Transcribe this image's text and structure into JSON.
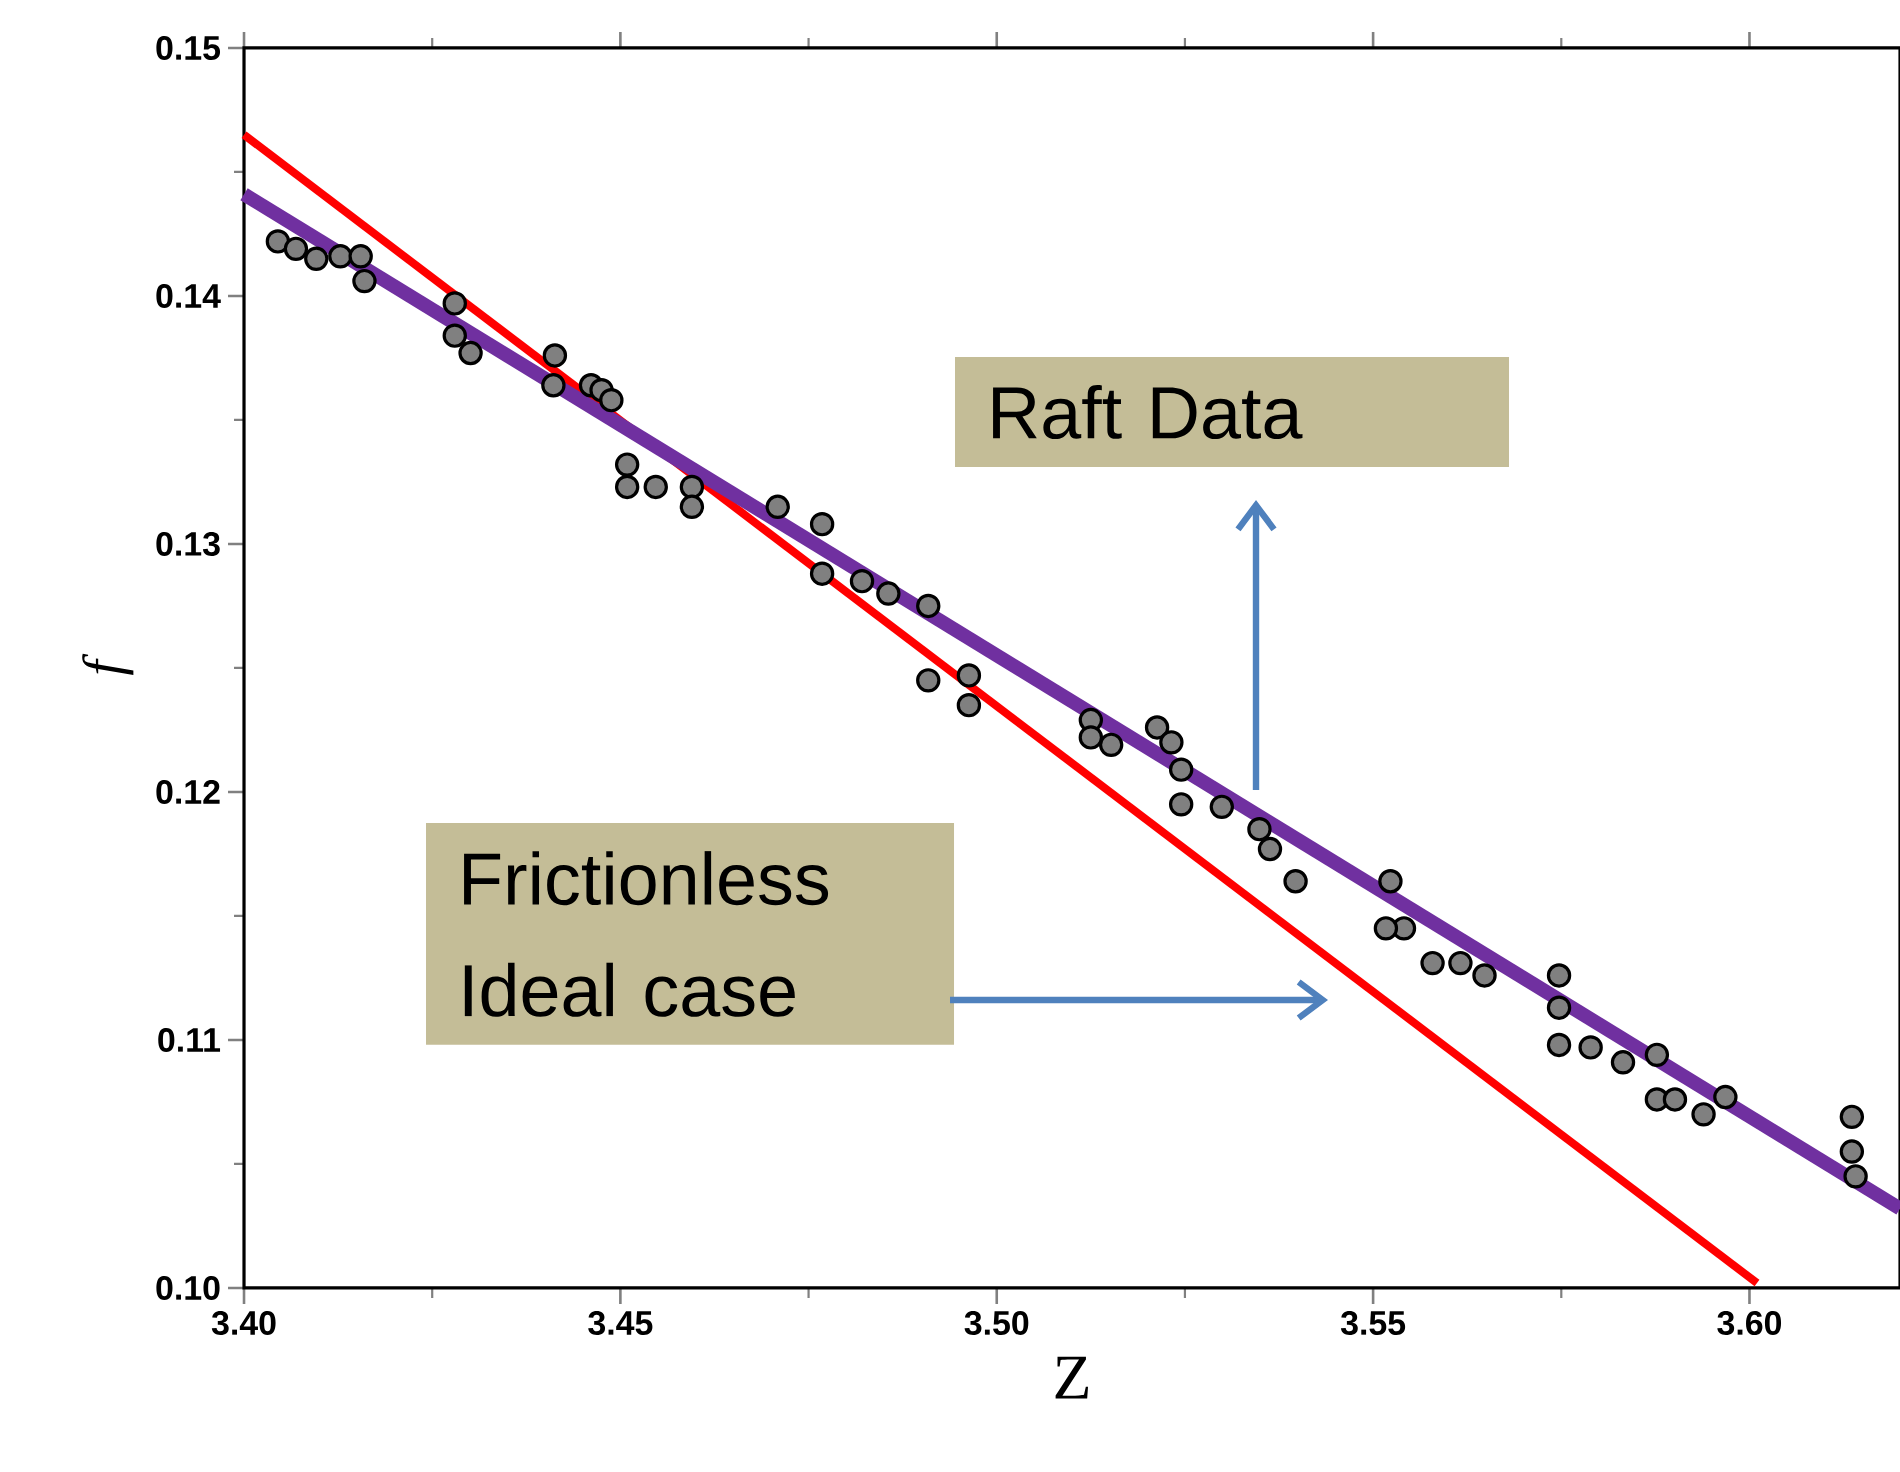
{
  "chart_data": {
    "type": "scatter",
    "xlabel": "Z",
    "ylabel": "f",
    "xlim": [
      3.4,
      3.62
    ],
    "ylim": [
      0.1,
      0.15
    ],
    "xticks": [
      {
        "value": 3.4,
        "label": "3.40"
      },
      3.45,
      {
        "value": 3.5,
        "label": "3.50"
      },
      3.55,
      {
        "value": 3.6,
        "label": "3.60"
      }
    ],
    "yticks": [
      {
        "value": 0.1,
        "label": "0.10"
      },
      0.11,
      0.12,
      0.13,
      0.14,
      {
        "value": 0.15,
        "label": "0.15"
      }
    ],
    "marker": "circle",
    "annotations": [
      "Raft Data",
      "Frictionless Ideal case"
    ],
    "series": [
      {
        "type": "scatter",
        "color": "#808080",
        "x": [
          3.4045,
          3.4069,
          3.4096,
          3.4128,
          3.4155,
          3.416,
          3.428,
          3.428,
          3.4301,
          3.4413,
          3.4411,
          3.4461,
          3.4475,
          3.4488,
          3.4509,
          3.4509,
          3.4547,
          3.4595,
          3.4595,
          3.4709,
          3.4768,
          3.4768,
          3.4821,
          3.4856,
          3.4909,
          3.4909,
          3.4963,
          3.4963,
          3.5125,
          3.5125,
          3.5152,
          3.5213,
          3.5232,
          3.5245,
          3.5245,
          3.5299,
          3.5349,
          3.5363,
          3.5397,
          3.5523,
          3.5541,
          3.5517,
          3.5579,
          3.5616,
          3.5648,
          3.5747,
          3.5747,
          3.5747,
          3.5789,
          3.5832,
          3.5877,
          3.5877,
          3.5901,
          3.5939,
          3.5968,
          3.6136,
          3.6136,
          3.6141
        ],
        "values": [
          0.1422,
          0.1419,
          0.1415,
          0.1416,
          0.1416,
          0.1406,
          0.1397,
          0.1384,
          0.1377,
          0.1376,
          0.1364,
          0.1364,
          0.1362,
          0.1358,
          0.1332,
          0.1323,
          0.1323,
          0.1323,
          0.1315,
          0.1315,
          0.1308,
          0.1288,
          0.1285,
          0.128,
          0.1275,
          0.1245,
          0.1247,
          0.1235,
          0.1229,
          0.1222,
          0.1219,
          0.1226,
          0.122,
          0.1209,
          0.1195,
          0.1194,
          0.1185,
          0.1177,
          0.1164,
          0.1164,
          0.1145,
          0.1145,
          0.1131,
          0.1131,
          0.1126,
          0.1126,
          0.1113,
          0.1098,
          0.1097,
          0.1091,
          0.1094,
          0.1076,
          0.1076,
          0.107,
          0.1077,
          0.1069,
          0.1055,
          0.1045
        ]
      },
      {
        "type": "line",
        "color": "#ff0000",
        "marker": "none",
        "x": [
          3.4,
          3.601
        ],
        "values": [
          0.1465,
          0.1002
        ]
      },
      {
        "type": "line",
        "color": "#7030a0",
        "marker": "none",
        "x": [
          3.4,
          3.62
        ],
        "values": [
          0.1441,
          0.1032
        ]
      }
    ]
  }
}
